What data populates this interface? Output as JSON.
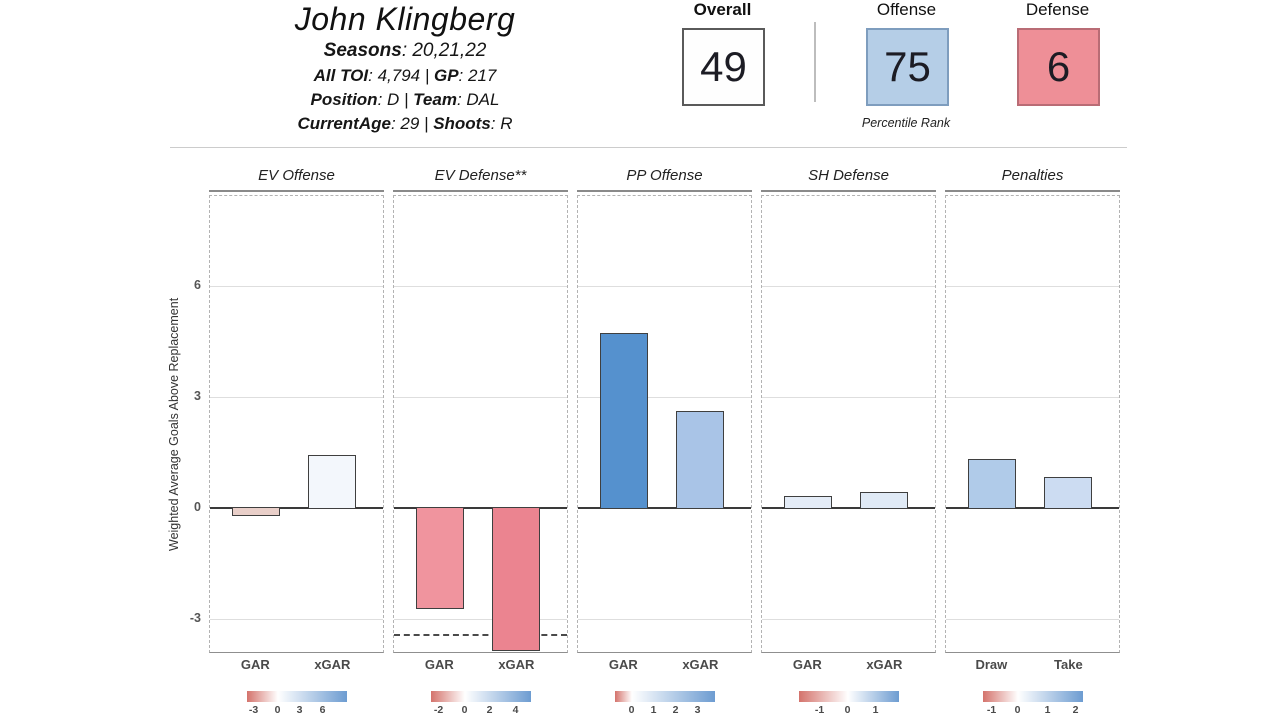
{
  "header": {
    "name": "John Klingberg",
    "info_lines": [
      {
        "big": true,
        "segments": [
          {
            "label": "Seasons",
            "value": ": 20,21,22"
          }
        ]
      },
      {
        "big": false,
        "segments": [
          {
            "label": "All TOI",
            "value": ": 4,794 | "
          },
          {
            "label": "GP",
            "value": ": 217"
          }
        ]
      },
      {
        "big": false,
        "segments": [
          {
            "label": "Position",
            "value": ": D | "
          },
          {
            "label": "Team",
            "value": ": DAL"
          }
        ]
      },
      {
        "big": false,
        "segments": [
          {
            "label": "CurrentAge",
            "value": ": 29 | "
          },
          {
            "label": "Shoots",
            "value": ": R"
          }
        ]
      }
    ]
  },
  "percentiles": {
    "caption": "Percentile Rank",
    "boxes": [
      {
        "label": "Overall",
        "value": "49",
        "fill": "#fefefe",
        "border": "#5a5a5a",
        "text": "#1c1c24"
      },
      {
        "label": "Offense",
        "value": "75",
        "fill": "#b5cee7",
        "border": "#7e9dbe",
        "text": "#1c1c24"
      },
      {
        "label": "Defense",
        "value": "6",
        "fill": "#ee8f97",
        "border": "#b96c75",
        "text": "#1c1c24"
      }
    ]
  },
  "chart_data": {
    "type": "bar",
    "ylabel": "Weighted Average Goals Above Replacement",
    "yticks": [
      -3,
      0,
      3,
      6
    ],
    "ylim": [
      -3.95,
      8.45
    ],
    "grid": true,
    "style": {
      "scale_neg": "#d4736c",
      "scale_pos": "#6d9cd1",
      "bar_border": "#3f3f3f",
      "zero_line": "#3a3a3a"
    },
    "panels": [
      {
        "title": "EV Offense",
        "categories": [
          "GAR",
          "xGAR"
        ],
        "values": [
          -0.2,
          1.4
        ],
        "colors": [
          "#e9cfc9",
          "#f3f7fc"
        ],
        "scale": {
          "ticks": [
            "-3",
            "0",
            "3",
            "6"
          ],
          "pos": [
            7,
            31,
            53,
            76
          ],
          "zero": 31
        }
      },
      {
        "title": "EV Defense**",
        "categories": [
          "GAR",
          "xGAR"
        ],
        "values": [
          -2.7,
          -3.85
        ],
        "ref_line": -3.4,
        "colors": [
          "#f0949e",
          "#eb8490"
        ],
        "scale": {
          "ticks": [
            "-2",
            "0",
            "2",
            "4"
          ],
          "pos": [
            8,
            34,
            59,
            85
          ],
          "zero": 34
        }
      },
      {
        "title": "PP Offense",
        "categories": [
          "GAR",
          "xGAR"
        ],
        "values": [
          4.7,
          2.6
        ],
        "colors": [
          "#5591ce",
          "#a9c4e7"
        ],
        "scale": {
          "ticks": [
            "0",
            "1",
            "2",
            "3"
          ],
          "pos": [
            17,
            39,
            61,
            83
          ],
          "zero": 17
        }
      },
      {
        "title": "SH Defense",
        "categories": [
          "GAR",
          "xGAR"
        ],
        "values": [
          0.3,
          0.4
        ],
        "colors": [
          "#e4ecf7",
          "#e0eaf6"
        ],
        "scale": {
          "ticks": [
            "-1",
            "0",
            "1"
          ],
          "pos": [
            21,
            49,
            77
          ],
          "zero": 49
        }
      },
      {
        "title": "Penalties",
        "categories": [
          "Draw",
          "Take"
        ],
        "values": [
          1.3,
          0.8
        ],
        "colors": [
          "#b0cbe9",
          "#ccdcf2"
        ],
        "scale": {
          "ticks": [
            "-1",
            "0",
            "1",
            "2"
          ],
          "pos": [
            9,
            35,
            65,
            93
          ],
          "zero": 35
        }
      }
    ]
  }
}
